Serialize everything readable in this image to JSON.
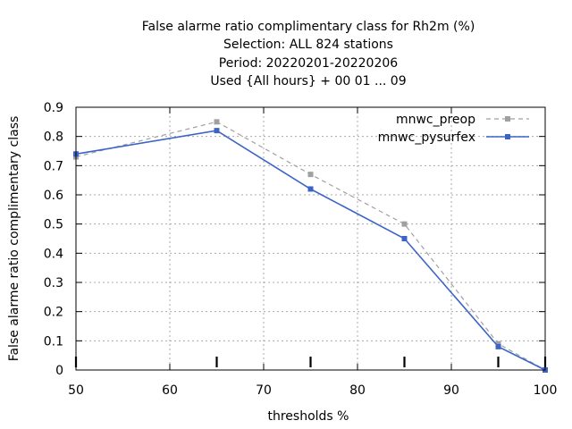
{
  "chart_data": {
    "type": "line",
    "title_lines": [
      "False alarme ratio complimentary class  for Rh2m (%)",
      "Selection: ALL    824 stations",
      "Period: 20220201-20220206",
      "Used {All hours} + 00 01 ... 09"
    ],
    "xlabel": "thresholds %",
    "ylabel": "False alarme ratio complimentary class",
    "xlim": [
      50,
      100
    ],
    "ylim": [
      0,
      0.9
    ],
    "xticks": [
      50,
      60,
      70,
      80,
      90,
      100
    ],
    "yticks": [
      0,
      0.1,
      0.2,
      0.3,
      0.4,
      0.5,
      0.6,
      0.7,
      0.8,
      0.9
    ],
    "xtick_labels": [
      "50",
      "60",
      "70",
      "80",
      "90",
      "100"
    ],
    "ytick_labels": [
      "0",
      "0.1",
      "0.2",
      "0.3",
      "0.4",
      "0.5",
      "0.6",
      "0.7",
      "0.8",
      "0.9"
    ],
    "threshold_marks": [
      50,
      65,
      75,
      85,
      95,
      100
    ],
    "grid": true,
    "legend_position": "top-right",
    "series": [
      {
        "name": "mnwc_preop",
        "color": "#a0a0a0",
        "style": "dashed",
        "x": [
          50,
          65,
          75,
          85,
          95,
          100
        ],
        "y": [
          0.73,
          0.85,
          0.67,
          0.5,
          0.09,
          0.0
        ]
      },
      {
        "name": "mnwc_pysurfex",
        "color": "#3c64c8",
        "style": "solid",
        "x": [
          50,
          65,
          75,
          85,
          95,
          100
        ],
        "y": [
          0.74,
          0.82,
          0.62,
          0.45,
          0.08,
          0.0
        ]
      }
    ]
  }
}
